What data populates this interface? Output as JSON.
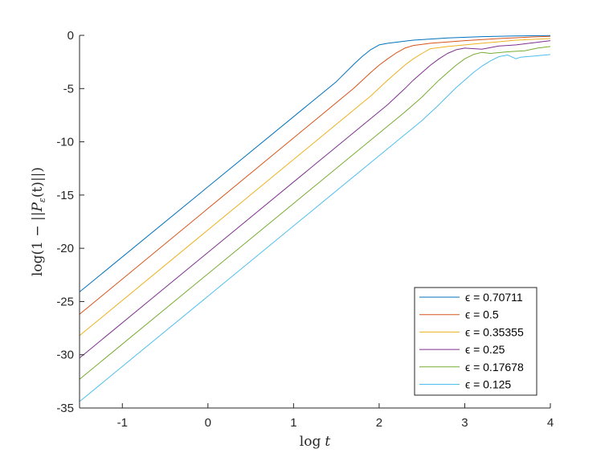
{
  "chart_data": {
    "type": "line",
    "title": "",
    "xlabel": "log t",
    "ylabel": "log(1 − ||P_ε(t)||)",
    "xlabel_parts": {
      "fn": "log",
      "var": "t"
    },
    "ylabel_parts": {
      "pre": "log(1 − ||",
      "P": "P",
      "sub": "ε",
      "post": "(t)||)"
    },
    "xlim": [
      -1.5,
      4
    ],
    "ylim": [
      -35,
      0
    ],
    "xticks": [
      "-1",
      "0",
      "1",
      "2",
      "3",
      "4"
    ],
    "yticks": [
      "0",
      "-5",
      "-10",
      "-15",
      "-20",
      "-25",
      "-30",
      "-35"
    ],
    "grid": false,
    "legend_position": "bottom-right",
    "series": [
      {
        "name": "ϵ = 0.70711",
        "color": "#0072BD",
        "x": [
          -1.5,
          1.5,
          1.7,
          1.8,
          1.9,
          2.0,
          2.1,
          2.4,
          2.8,
          3.2,
          3.6,
          4.0
        ],
        "y": [
          -24.1,
          -4.35,
          -2.75,
          -2.0,
          -1.35,
          -0.9,
          -0.75,
          -0.45,
          -0.25,
          -0.12,
          -0.05,
          -0.02
        ]
      },
      {
        "name": "ϵ = 0.5",
        "color": "#D95319",
        "x": [
          -1.5,
          1.7,
          1.9,
          2.0,
          2.1,
          2.2,
          2.3,
          2.4,
          2.6,
          3.0,
          3.4,
          3.8,
          4.0
        ],
        "y": [
          -26.2,
          -5.0,
          -3.5,
          -2.8,
          -2.2,
          -1.65,
          -1.2,
          -0.95,
          -0.75,
          -0.5,
          -0.3,
          -0.15,
          -0.1
        ]
      },
      {
        "name": "ϵ = 0.35355",
        "color": "#EDB120",
        "x": [
          -1.5,
          1.9,
          2.1,
          2.2,
          2.3,
          2.4,
          2.5,
          2.6,
          2.8,
          3.2,
          3.6,
          4.0
        ],
        "y": [
          -28.2,
          -5.7,
          -4.2,
          -3.5,
          -2.8,
          -2.2,
          -1.7,
          -1.25,
          -1.05,
          -0.75,
          -0.45,
          -0.3
        ]
      },
      {
        "name": "ϵ = 0.25",
        "color": "#7E2F8E",
        "x": [
          -1.5,
          2.1,
          2.3,
          2.4,
          2.5,
          2.6,
          2.7,
          2.8,
          2.9,
          3.0,
          3.2,
          3.4,
          3.6,
          3.8,
          4.0
        ],
        "y": [
          -30.3,
          -6.5,
          -5.0,
          -4.2,
          -3.5,
          -2.8,
          -2.2,
          -1.7,
          -1.35,
          -1.2,
          -1.3,
          -1.0,
          -0.9,
          -0.7,
          -0.5
        ]
      },
      {
        "name": "ϵ = 0.17678",
        "color": "#77AC30",
        "x": [
          -1.5,
          2.3,
          2.5,
          2.6,
          2.7,
          2.8,
          2.9,
          3.0,
          3.1,
          3.2,
          3.3,
          3.5,
          3.7,
          3.85,
          4.0
        ],
        "y": [
          -32.3,
          -7.2,
          -5.8,
          -5.0,
          -4.2,
          -3.5,
          -2.8,
          -2.2,
          -1.8,
          -1.6,
          -1.7,
          -1.55,
          -1.45,
          -1.2,
          -1.05
        ]
      },
      {
        "name": "ϵ = 0.125",
        "color": "#4DBEEE",
        "x": [
          -1.5,
          2.5,
          2.7,
          2.8,
          2.9,
          3.0,
          3.1,
          3.2,
          3.3,
          3.4,
          3.5,
          3.6,
          3.65,
          3.8,
          4.0
        ],
        "y": [
          -34.4,
          -8.0,
          -6.5,
          -5.7,
          -4.9,
          -4.2,
          -3.5,
          -2.9,
          -2.4,
          -2.0,
          -1.85,
          -2.2,
          -2.05,
          -1.95,
          -1.8
        ]
      }
    ]
  }
}
